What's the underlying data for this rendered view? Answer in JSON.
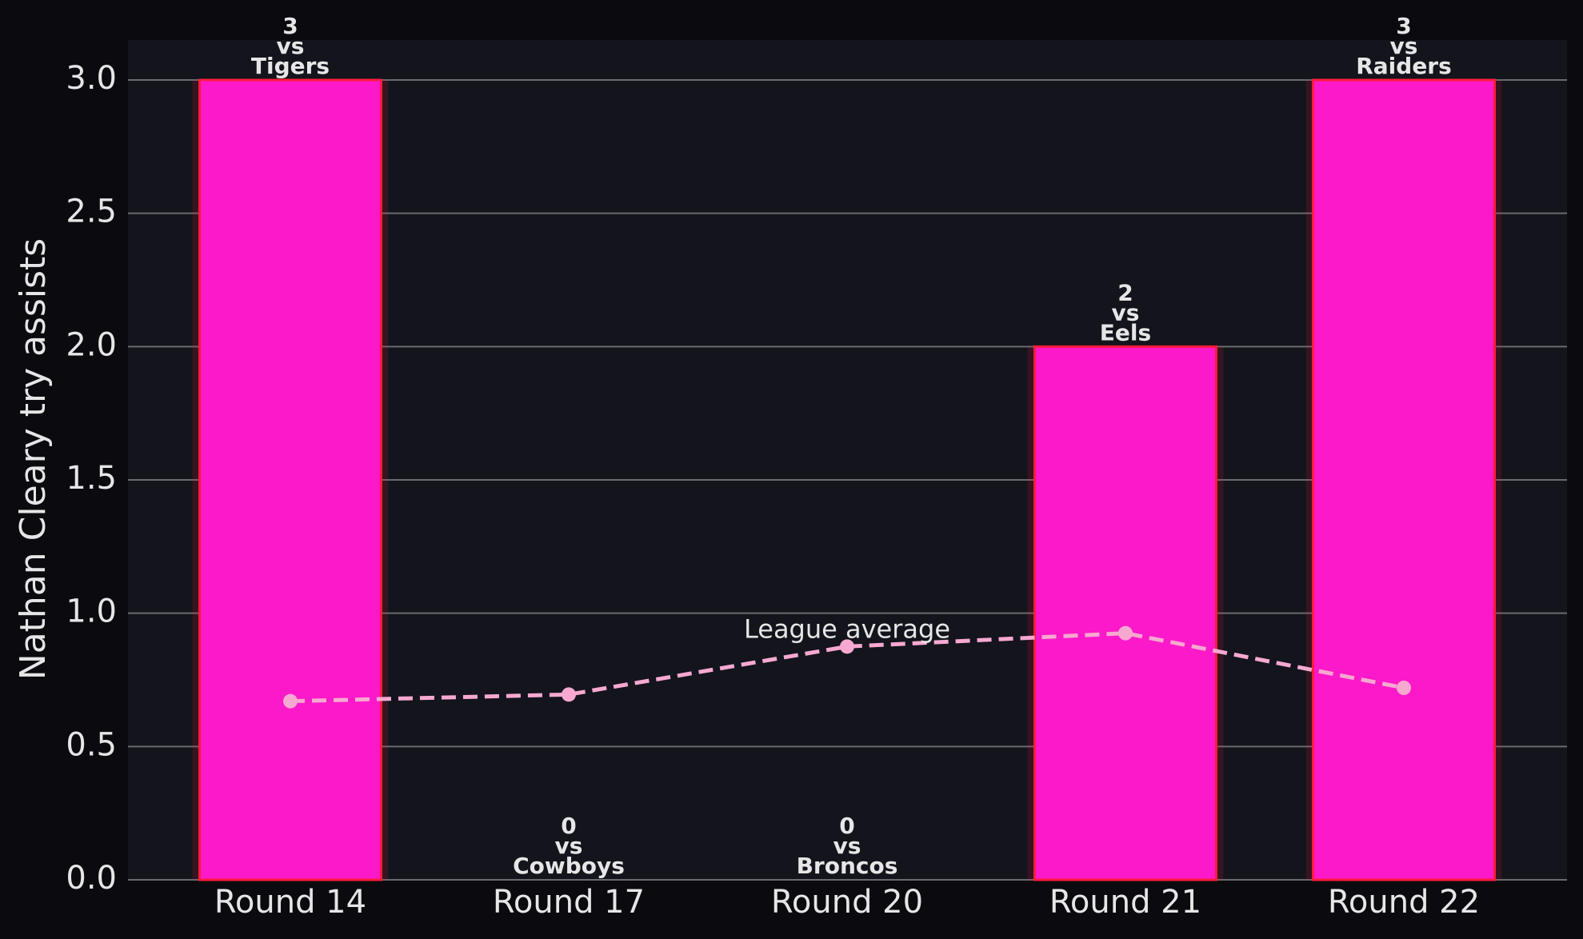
{
  "chart_data": {
    "type": "bar",
    "ylabel": "Nathan Cleary try assists",
    "categories": [
      "Round 14",
      "Round 17",
      "Round 20",
      "Round 21",
      "Round 22"
    ],
    "values": [
      3,
      0,
      0,
      2,
      3
    ],
    "opponents": [
      "Tigers",
      "Cowboys",
      "Broncos",
      "Eels",
      "Raiders"
    ],
    "label_connector": "vs",
    "color": "#fc19c9",
    "edge_color": "#ff1a3c",
    "ylim": [
      0,
      3.15
    ],
    "yticks": [
      {
        "value": 0,
        "label": "0.0"
      },
      {
        "value": 0.5,
        "label": "0.5"
      },
      {
        "value": 1,
        "label": "1.0"
      },
      {
        "value": 1.5,
        "label": "1.5"
      },
      {
        "value": 2,
        "label": "2.0"
      },
      {
        "value": 2.5,
        "label": "2.5"
      },
      {
        "value": 3,
        "label": "3.0"
      }
    ],
    "grid": true,
    "line": {
      "name": "League average",
      "color": "#f7a8d0",
      "values": [
        0.67,
        0.695,
        0.875,
        0.925,
        0.72
      ],
      "label_index": 2
    }
  }
}
